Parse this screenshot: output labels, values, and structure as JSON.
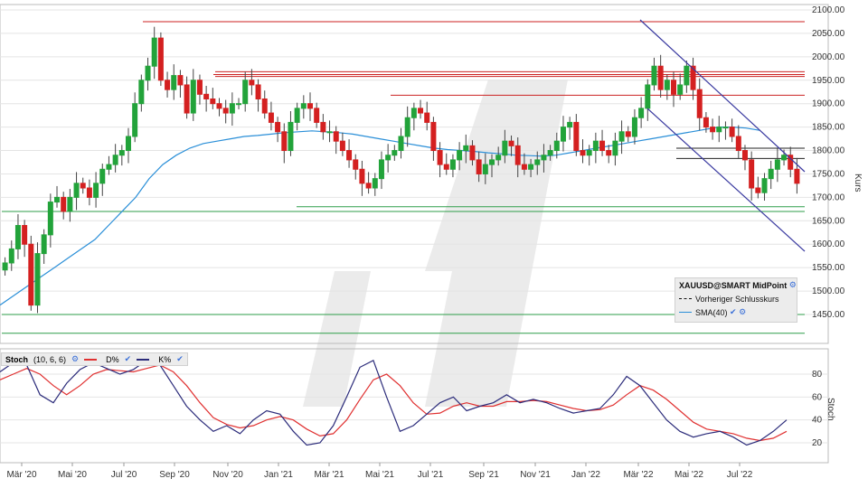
{
  "chart_data": [
    {
      "type": "candlestick",
      "title": "",
      "ylabel": "Kurs",
      "ylim": [
        1400,
        2110
      ],
      "yticks": [
        1450,
        1500,
        1550,
        1600,
        1650,
        1700,
        1750,
        1800,
        1850,
        1900,
        1950,
        2000,
        2050,
        2100
      ],
      "ytick_labels": [
        "1450.00",
        "1500.00",
        "1550.00",
        "1600.00",
        "1650.00",
        "1700.00",
        "1750.00",
        "1800.00",
        "1850.00",
        "1900.00",
        "1950.00",
        "2000.00",
        "2050.00",
        "2100.00"
      ],
      "x_labels": [
        "Mär '20",
        "Mai '20",
        "Jul '20",
        "Sep '20",
        "Nov '20",
        "Jan '21",
        "Mär '21",
        "Mai '21",
        "Jul '21",
        "Sep '21",
        "Nov '21",
        "Jan '22",
        "Mär '22",
        "Mai '22",
        "Jul '22"
      ],
      "legend": {
        "title": "XAUUSD@SMART MidPoint",
        "items": [
          "Vorheriger Schlusskurs",
          "SMA(40)"
        ]
      },
      "close_series": [
        1560,
        1590,
        1640,
        1600,
        1470,
        1580,
        1620,
        1690,
        1700,
        1670,
        1700,
        1730,
        1720,
        1700,
        1730,
        1760,
        1770,
        1790,
        1800,
        1830,
        1900,
        1950,
        1980,
        2040,
        1950,
        1930,
        1960,
        1940,
        1880,
        1950,
        1920,
        1910,
        1900,
        1890,
        1880,
        1900,
        1900,
        1950,
        1940,
        1910,
        1880,
        1860,
        1840,
        1800,
        1860,
        1890,
        1900,
        1890,
        1860,
        1840,
        1840,
        1820,
        1800,
        1780,
        1760,
        1730,
        1720,
        1740,
        1780,
        1790,
        1800,
        1830,
        1870,
        1890,
        1880,
        1860,
        1800,
        1770,
        1760,
        1780,
        1800,
        1810,
        1780,
        1750,
        1770,
        1780,
        1790,
        1820,
        1810,
        1770,
        1760,
        1770,
        1780,
        1790,
        1800,
        1820,
        1850,
        1860,
        1800,
        1790,
        1800,
        1820,
        1800,
        1790,
        1820,
        1840,
        1830,
        1870,
        1890,
        1940,
        1980,
        1930,
        1950,
        1920,
        1940,
        1980,
        1930,
        1870,
        1850,
        1840,
        1850,
        1850,
        1830,
        1800,
        1780,
        1720,
        1710,
        1740,
        1760,
        1780,
        1790,
        1760,
        1730
      ],
      "sma40_series": [
        1470,
        1490,
        1510,
        1530,
        1550,
        1570,
        1590,
        1610,
        1640,
        1670,
        1700,
        1740,
        1770,
        1790,
        1805,
        1815,
        1820,
        1825,
        1830,
        1832,
        1835,
        1838,
        1840,
        1842,
        1840,
        1838,
        1835,
        1830,
        1825,
        1820,
        1815,
        1810,
        1805,
        1802,
        1800,
        1798,
        1795,
        1793,
        1790,
        1789,
        1788,
        1790,
        1795,
        1800,
        1805,
        1810,
        1815,
        1820,
        1825,
        1830,
        1835,
        1840,
        1845,
        1850,
        1850,
        1848,
        1843
      ],
      "horizontal_lines": [
        {
          "value": 2075,
          "color": "#cc2222"
        },
        {
          "value": 1968,
          "color": "#cc2222"
        },
        {
          "value": 1962,
          "color": "#cc2222"
        },
        {
          "value": 1958,
          "color": "#cc2222"
        },
        {
          "value": 1918,
          "color": "#cc2222"
        },
        {
          "value": 1805,
          "color": "#222222"
        },
        {
          "value": 1783,
          "color": "#222222"
        },
        {
          "value": 1680,
          "color": "#2e9e4a"
        },
        {
          "value": 1670,
          "color": "#2e9e4a"
        },
        {
          "value": 1450,
          "color": "#2e9e4a"
        },
        {
          "value": 1410,
          "color": "#2e9e4a"
        }
      ]
    },
    {
      "type": "line",
      "title": "",
      "ylabel": "Stoch",
      "ylim": [
        0,
        100
      ],
      "yticks": [
        20,
        40,
        60,
        80
      ],
      "legend": {
        "name": "Stoch",
        "params": "(10, 6, 6)",
        "items": [
          "D%",
          "K%"
        ]
      },
      "series": [
        {
          "name": "K%",
          "color": "#2b2b7a",
          "values": [
            82,
            90,
            88,
            62,
            55,
            72,
            84,
            90,
            85,
            80,
            84,
            92,
            88,
            70,
            52,
            40,
            30,
            35,
            28,
            40,
            48,
            45,
            30,
            18,
            20,
            35,
            60,
            86,
            92,
            60,
            30,
            35,
            45,
            55,
            60,
            48,
            52,
            55,
            62,
            55,
            58,
            55,
            50,
            46,
            48,
            50,
            62,
            78,
            70,
            55,
            40,
            30,
            25,
            28,
            30,
            25,
            18,
            22,
            30,
            40
          ]
        },
        {
          "name": "D%",
          "color": "#e03030",
          "values": [
            75,
            80,
            85,
            80,
            70,
            62,
            70,
            80,
            84,
            83,
            82,
            85,
            88,
            82,
            70,
            55,
            42,
            36,
            33,
            35,
            40,
            43,
            40,
            32,
            26,
            28,
            40,
            58,
            75,
            80,
            70,
            55,
            45,
            46,
            52,
            55,
            52,
            52,
            56,
            56,
            57,
            56,
            53,
            50,
            48,
            49,
            53,
            62,
            70,
            66,
            58,
            48,
            38,
            32,
            30,
            28,
            24,
            22,
            24,
            30
          ]
        }
      ]
    }
  ]
}
